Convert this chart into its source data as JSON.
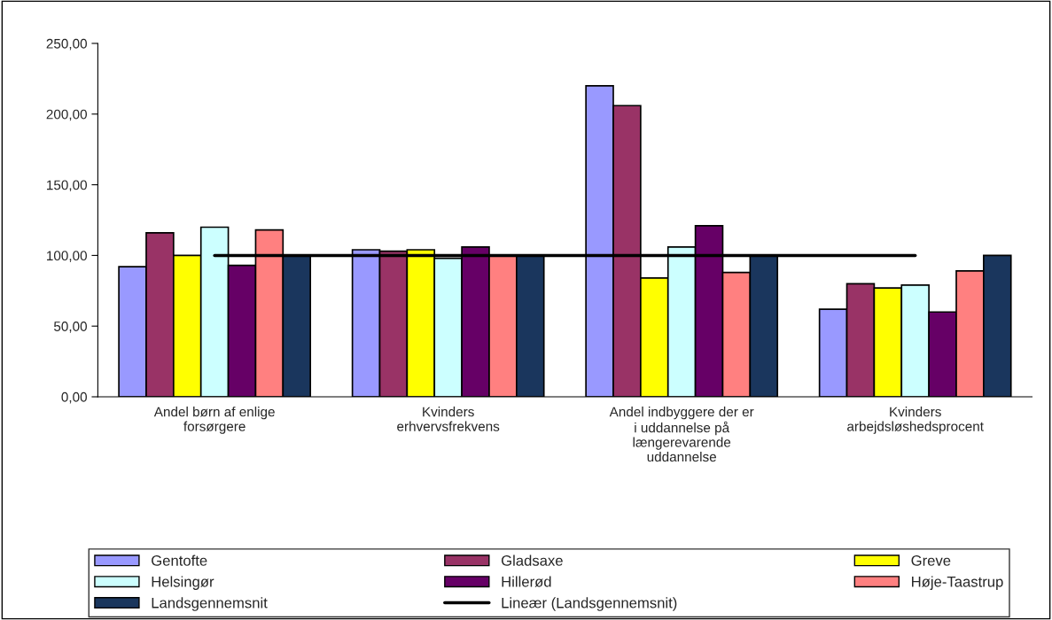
{
  "chart_data": {
    "type": "bar",
    "categories": [
      "Andel børn af enlige forsørgere",
      "Kvinders erhvervsfrekvens",
      "Andel indbyggere der er i uddannelse på længerevarende uddannelse",
      "Kvinders arbejdsløshedsprocent"
    ],
    "series": [
      {
        "name": "Gentofte",
        "color": "#9999ff",
        "values": [
          92,
          104,
          220,
          62
        ]
      },
      {
        "name": "Gladsaxe",
        "color": "#993366",
        "values": [
          116,
          103,
          206,
          80
        ]
      },
      {
        "name": "Greve",
        "color": "#ffff00",
        "values": [
          100,
          104,
          84,
          77
        ]
      },
      {
        "name": "Helsingør",
        "color": "#ccffff",
        "values": [
          120,
          98,
          106,
          79
        ]
      },
      {
        "name": "Hillerød",
        "color": "#660066",
        "values": [
          93,
          106,
          121,
          60
        ]
      },
      {
        "name": "Høje-Taastrup",
        "color": "#ff8080",
        "values": [
          118,
          100,
          88,
          89
        ]
      },
      {
        "name": "Landsgennemsnit",
        "color": "#1a365d",
        "values": [
          100,
          100,
          100,
          100
        ]
      },
      {
        "name": "Lineær (Landsgennemsnit)",
        "type": "line",
        "color": "#000000",
        "values": [
          100,
          100,
          100,
          100
        ]
      }
    ],
    "ylim": [
      0,
      250
    ],
    "yticks": [
      {
        "value": 0,
        "label": "0,00"
      },
      {
        "value": 50,
        "label": "50,00"
      },
      {
        "value": 100,
        "label": "100,00"
      },
      {
        "value": 150,
        "label": "150,00"
      },
      {
        "value": 200,
        "label": "200,00"
      },
      {
        "value": 250,
        "label": "250,00"
      }
    ],
    "grid": false,
    "legend": "bottom"
  }
}
